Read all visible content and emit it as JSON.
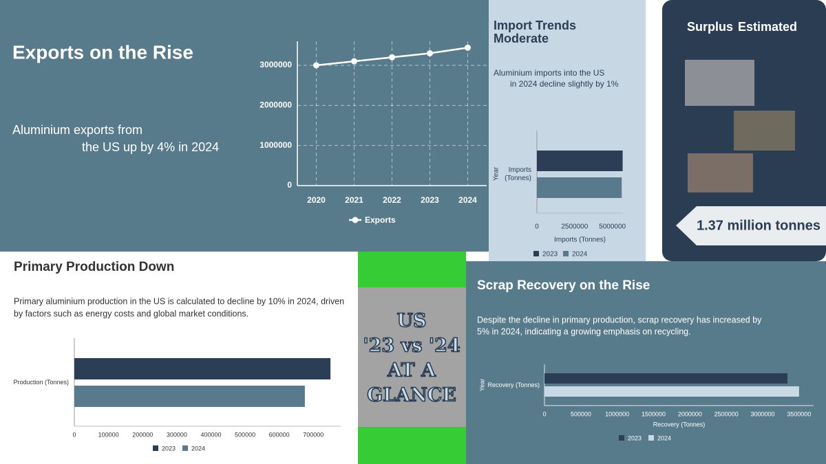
{
  "chart_data": [
    {
      "type": "line",
      "title": "Exports on the Rise",
      "subtitle": [
        "Aluminium exports from",
        "the US up by 4% in 2024"
      ],
      "categories": [
        "2020",
        "2021",
        "2022",
        "2023",
        "2024"
      ],
      "series": [
        {
          "name": "Exports",
          "color": "#ffffff",
          "values": [
            3000000,
            3100000,
            3200000,
            3300000,
            3440000
          ]
        }
      ],
      "ylim": [
        0,
        3600000
      ],
      "yticks": [
        0,
        1000000,
        2000000,
        3000000
      ],
      "grid": true
    },
    {
      "type": "bar",
      "orientation": "horizontal",
      "title": "Import Trends Moderate",
      "subtitle": [
        "Aluminium imports into the US",
        "in 2024 decline slightly by 1%"
      ],
      "categories": [
        "Imports (Tonnes)"
      ],
      "series": [
        {
          "name": "2023",
          "color": "#2c3e55",
          "values": [
            5680000
          ]
        },
        {
          "name": "2024",
          "color": "#587a8c",
          "values": [
            5620000
          ]
        }
      ],
      "xlim": [
        0,
        5700000
      ],
      "xticks": [
        0,
        2500000,
        5000000
      ],
      "x_label": "Imports (Tonnes)",
      "y_label": "Year",
      "grid": false
    },
    {
      "type": "bar",
      "orientation": "horizontal",
      "title": "Primary Production Down",
      "subtitle": [
        "Primary aluminium production in the US is calculated to decline by 10% in 2024, driven",
        "by factors such as energy costs and global market conditions."
      ],
      "categories": [
        "Production (Tonnes)"
      ],
      "series": [
        {
          "name": "2023",
          "color": "#2c3e55",
          "values": [
            750000
          ]
        },
        {
          "name": "2024",
          "color": "#587a8c",
          "values": [
            675000
          ]
        }
      ],
      "xlim": [
        0,
        780000
      ],
      "xticks": [
        0,
        100000,
        200000,
        300000,
        400000,
        500000,
        600000,
        700000
      ],
      "grid": false
    },
    {
      "type": "bar",
      "orientation": "horizontal",
      "title": "Scrap Recovery on the Rise",
      "subtitle": [
        "Despite the decline in primary production, scrap recovery has increased by",
        "5% in 2024, indicating a growing emphasis on recycling."
      ],
      "categories": [
        "Recovery (Tonnes)"
      ],
      "series": [
        {
          "name": "2023",
          "color": "#2c3e55",
          "values": [
            3340000
          ]
        },
        {
          "name": "2024",
          "color": "#c9d9e5",
          "values": [
            3500000
          ]
        }
      ],
      "xlim": [
        0,
        3700000
      ],
      "xticks": [
        0,
        500000,
        1000000,
        1500000,
        2000000,
        2500000,
        3000000,
        3500000
      ],
      "x_label": "Recovery (Tonnes)",
      "y_label": "Year",
      "grid": false
    }
  ],
  "surplus": {
    "title": "Surplus",
    "title_suffix": "Estimated",
    "value_label": "1.37 million tonnes"
  },
  "banner": {
    "lines": [
      "US",
      "'23 vs '24",
      "AT A",
      "GLANCE"
    ]
  }
}
